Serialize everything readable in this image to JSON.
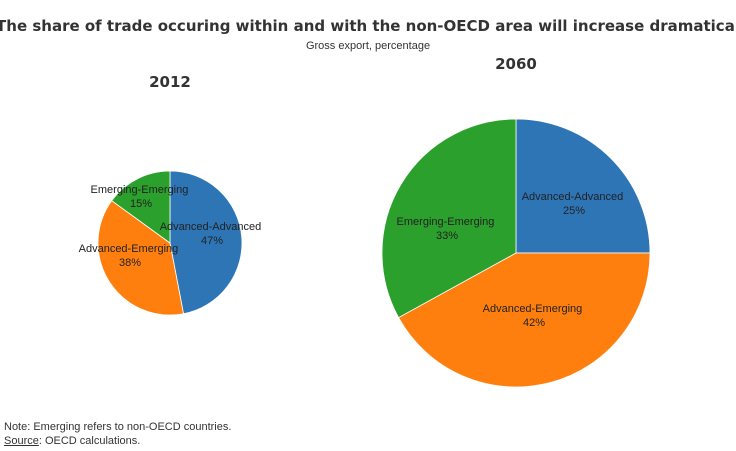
{
  "chart_data": {
    "type": "pie",
    "title": "The share of trade occuring within and with the non-OECD area will increase dramatical",
    "subtitle": "Gross export, percentage",
    "colors": {
      "Advanced-Advanced": "#2e75b6",
      "Advanced-Emerging": "#ff7f0e",
      "Emerging-Emerging": "#2ca02c"
    },
    "pies": [
      {
        "name": "2012",
        "slices": [
          {
            "label": "Advanced-Advanced",
            "value": 47,
            "value_label": "47%"
          },
          {
            "label": "Advanced-Emerging",
            "value": 38,
            "value_label": "38%"
          },
          {
            "label": "Emerging-Emerging",
            "value": 15,
            "value_label": "15%"
          }
        ]
      },
      {
        "name": "2060",
        "slices": [
          {
            "label": "Advanced-Advanced",
            "value": 25,
            "value_label": "25%"
          },
          {
            "label": "Advanced-Emerging",
            "value": 42,
            "value_label": "42%"
          },
          {
            "label": "Emerging-Emerging",
            "value": 33,
            "value_label": "33%"
          }
        ]
      }
    ]
  },
  "footer": {
    "note": "Note: Emerging refers to non-OECD countries.",
    "source_label": "Source",
    "source_text": ": OECD calculations."
  }
}
